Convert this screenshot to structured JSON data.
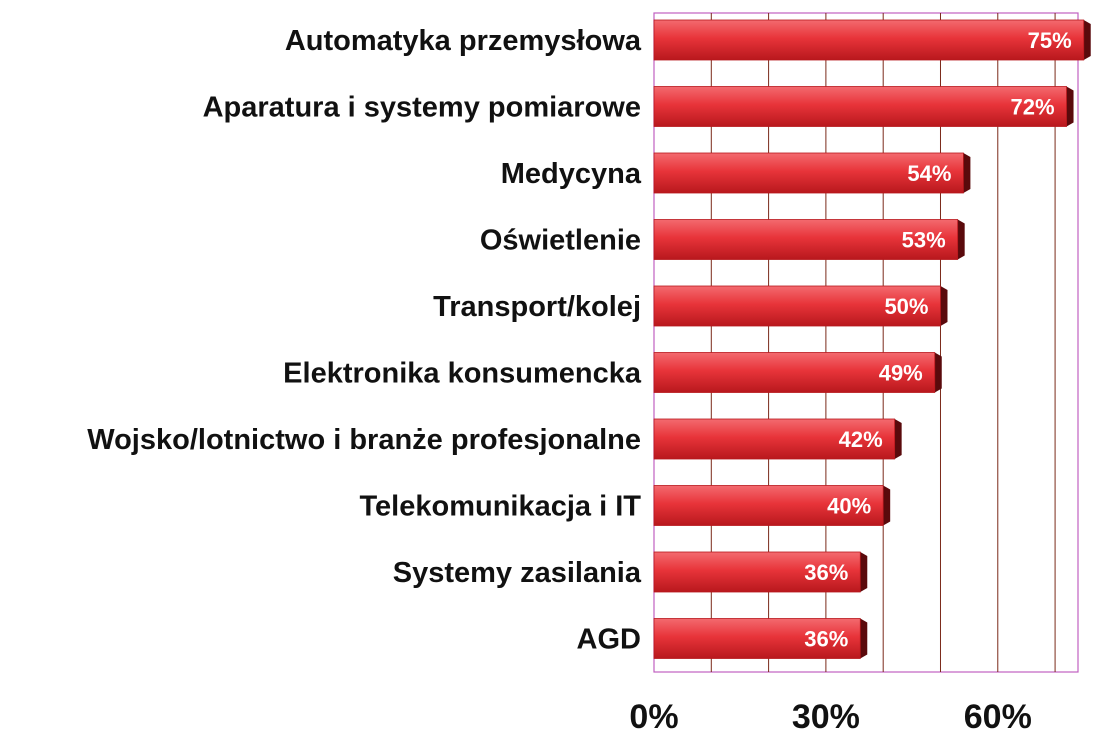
{
  "chart_data": {
    "type": "bar",
    "orientation": "horizontal",
    "categories": [
      "Automatyka przemysłowa",
      "Aparatura i systemy pomiarowe",
      "Medycyna",
      "Oświetlenie",
      "Transport/kolej",
      "Elektronika konsumencka",
      "Wojsko/lotnictwo i branże profesjonalne",
      "Telekomunikacja i IT",
      "Systemy zasilania",
      "AGD"
    ],
    "values": [
      75,
      72,
      54,
      53,
      50,
      49,
      42,
      40,
      36,
      36
    ],
    "value_labels": [
      "75%",
      "72%",
      "54%",
      "53%",
      "50%",
      "49%",
      "42%",
      "40%",
      "36%",
      "36%"
    ],
    "x_ticks": [
      0,
      30,
      60
    ],
    "x_tick_labels": [
      "0%",
      "30%",
      "60%"
    ],
    "xlim": [
      0,
      74
    ],
    "title": "",
    "xlabel": "",
    "ylabel": "",
    "grid": true,
    "legend": "none",
    "colors": {
      "bar": "#e8343a",
      "bar_light": "#f36a6f",
      "bar_dark": "#b8181d",
      "bar_shadow": "#5a0a0c",
      "gridline": "#7a2a1a",
      "plot_border": "#c060c0"
    }
  }
}
